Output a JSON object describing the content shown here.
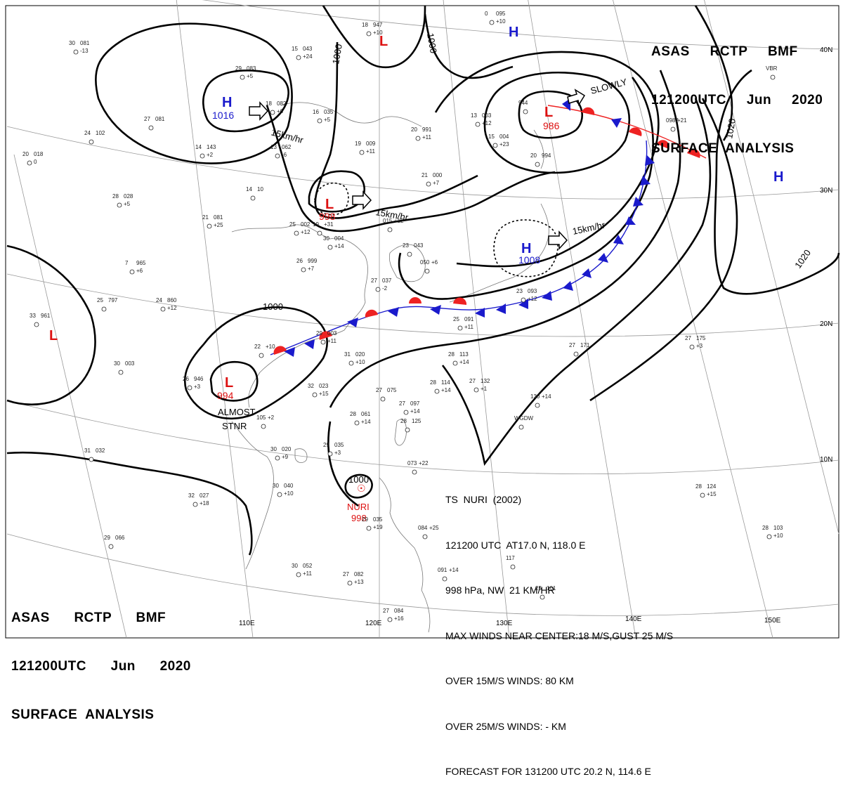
{
  "header_top": {
    "line1": "ASAS     RCTP     BMF",
    "line2": "121200UTC     Jun     2020",
    "line3": "SURFACE  ANALYSIS"
  },
  "header_bottom": {
    "line1": "ASAS      RCTP      BMF",
    "line2": "121200UTC      Jun      2020",
    "line3": "SURFACE  ANALYSIS"
  },
  "typhoon_info": {
    "line1": "TS  NURI  (2002)",
    "line2": "121200 UTC  AT17.0 N, 118.0 E",
    "line3": "998 hPa, NW  21 KM/HR",
    "line4": "MAX WINDS NEAR CENTER:18 M/S,GUST 25 M/S",
    "line5": "OVER 15M/S WINDS: 80 KM",
    "line6": "OVER 25M/S WINDS: - KM",
    "line7": "FORECAST FOR 131200 UTC 20.2 N, 114.6 E"
  },
  "pressure_systems": [
    {
      "type": "H",
      "value": "1016",
      "color": "#1a1acc"
    },
    {
      "type": "H",
      "value": "",
      "color": "#1a1acc"
    },
    {
      "type": "H",
      "value": "1008",
      "color": "#1a1acc"
    },
    {
      "type": "H",
      "value": "",
      "color": "#1a1acc"
    },
    {
      "type": "L",
      "value": "998",
      "color": "#dd1111"
    },
    {
      "type": "L",
      "value": "986",
      "color": "#dd1111"
    },
    {
      "type": "L",
      "value": "994",
      "color": "#dd1111"
    },
    {
      "type": "L",
      "value": "",
      "color": "#dd1111"
    },
    {
      "type": "L",
      "value": "",
      "color": "#dd1111"
    }
  ],
  "typhoon_symbol": {
    "name": "NURI",
    "value": "998",
    "color": "#dd1111"
  },
  "motion_labels": {
    "m1": "15km/hr",
    "m2": "15km/hr",
    "m3": "15km/hr",
    "m4": "SLOWLY"
  },
  "notes": {
    "almost": "ALMOST",
    "stnr": "STNR"
  },
  "isobars": {
    "i1000a": "1000",
    "i1000b": "1000",
    "i1000c": "1000",
    "i1000d": "1000",
    "i1020a": "1020",
    "i1020b": "1020"
  },
  "longitudes": [
    "110E",
    "120E",
    "130E",
    "140E",
    "150E"
  ],
  "latitudes": [
    "40N",
    "30N",
    "20N",
    "10N"
  ],
  "stations": [
    {
      "a": "30",
      "b": "081",
      "c": "-13"
    },
    {
      "a": "15",
      "b": "043",
      "c": "+24"
    },
    {
      "a": "18",
      "b": "947",
      "c": "+10"
    },
    {
      "a": "0",
      "b": "095",
      "c": "+10"
    },
    {
      "a": "29",
      "b": "083",
      "c": "+5"
    },
    {
      "a": "18",
      "b": "082",
      "c": "+6"
    },
    {
      "a": "16",
      "b": "035",
      "c": "+5"
    },
    {
      "a": "27",
      "b": "081",
      "c": ""
    },
    {
      "a": "24",
      "b": "102",
      "c": ""
    },
    {
      "a": "20",
      "b": "018",
      "c": "0"
    },
    {
      "a": "14",
      "b": "143",
      "c": "+2"
    },
    {
      "a": "13",
      "b": "062",
      "c": "-6"
    },
    {
      "a": "19",
      "b": "009",
      "c": "+11"
    },
    {
      "a": "20",
      "b": "991",
      "c": "+11"
    },
    {
      "a": "13",
      "b": "003",
      "c": "+12"
    },
    {
      "a": "944",
      "b": "",
      "c": ""
    },
    {
      "a": "15",
      "b": "004",
      "c": "+23"
    },
    {
      "a": "20",
      "b": "994",
      "c": ""
    },
    {
      "a": "21",
      "b": "000",
      "c": "+7"
    },
    {
      "a": "28",
      "b": "028",
      "c": "+5"
    },
    {
      "a": "14",
      "b": "10",
      "c": ""
    },
    {
      "a": "21",
      "b": "081",
      "c": "+25"
    },
    {
      "a": "25",
      "b": "002",
      "c": "+12"
    },
    {
      "a": "19",
      "b": "+31",
      "c": ""
    },
    {
      "a": "015",
      "b": "+12",
      "c": ""
    },
    {
      "a": "30",
      "b": "004",
      "c": "+14"
    },
    {
      "a": "7",
      "b": "965",
      "c": "+6"
    },
    {
      "a": "26",
      "b": "999",
      "c": "+7"
    },
    {
      "a": "23",
      "b": "043",
      "c": ""
    },
    {
      "a": "050",
      "b": "+6",
      "c": ""
    },
    {
      "a": "25",
      "b": "797",
      "c": ""
    },
    {
      "a": "24",
      "b": "860",
      "c": "+12"
    },
    {
      "a": "27",
      "b": "037",
      "c": "-2"
    },
    {
      "a": "23",
      "b": "093",
      "c": "+12"
    },
    {
      "a": "25",
      "b": "091",
      "c": "+11"
    },
    {
      "a": "33",
      "b": "961",
      "c": ""
    },
    {
      "a": "29",
      "b": "003",
      "c": "+11"
    },
    {
      "a": "22",
      "b": "+10",
      "c": ""
    },
    {
      "a": "31",
      "b": "020",
      "c": "+10"
    },
    {
      "a": "28",
      "b": "113",
      "c": "+14"
    },
    {
      "a": "27",
      "b": "171",
      "c": ""
    },
    {
      "a": "27",
      "b": "175",
      "c": "+3"
    },
    {
      "a": "30",
      "b": "003",
      "c": ""
    },
    {
      "a": "26",
      "b": "946",
      "c": "+3"
    },
    {
      "a": "32",
      "b": "023",
      "c": "+15"
    },
    {
      "a": "28",
      "b": "114",
      "c": "+14"
    },
    {
      "a": "27",
      "b": "132",
      "c": "+1"
    },
    {
      "a": "27",
      "b": "075",
      "c": ""
    },
    {
      "a": "28",
      "b": "061",
      "c": "+14"
    },
    {
      "a": "27",
      "b": "097",
      "c": "+14"
    },
    {
      "a": "130",
      "b": "+14",
      "c": ""
    },
    {
      "a": "105",
      "b": "+2",
      "c": ""
    },
    {
      "a": "31",
      "b": "032",
      "c": ""
    },
    {
      "a": "30",
      "b": "020",
      "c": "+9"
    },
    {
      "a": "29",
      "b": "035",
      "c": "+3"
    },
    {
      "a": "28",
      "b": "125",
      "c": ""
    },
    {
      "a": "30",
      "b": "040",
      "c": "+10"
    },
    {
      "a": "32",
      "b": "027",
      "c": "+18"
    },
    {
      "a": "29",
      "b": "035",
      "c": "+19"
    },
    {
      "a": "073",
      "b": "+22",
      "c": ""
    },
    {
      "a": "28",
      "b": "124",
      "c": "+15"
    },
    {
      "a": "28",
      "b": "103",
      "c": "+10"
    },
    {
      "a": "29",
      "b": "066",
      "c": ""
    },
    {
      "a": "30",
      "b": "052",
      "c": "+11"
    },
    {
      "a": "27",
      "b": "082",
      "c": "+13"
    },
    {
      "a": "084",
      "b": "+25",
      "c": ""
    },
    {
      "a": "091",
      "b": "+14",
      "c": ""
    },
    {
      "a": "25",
      "b": "101",
      "c": ""
    },
    {
      "a": "27",
      "b": "084",
      "c": "+16"
    },
    {
      "a": "117",
      "b": "",
      "c": ""
    },
    {
      "a": "WGDW",
      "b": "",
      "c": ""
    },
    {
      "a": "VBR",
      "b": "",
      "c": ""
    },
    {
      "a": "0982",
      "b": "+21",
      "c": ""
    }
  ],
  "colors": {
    "cold_front": "#1a1acc",
    "warm_front": "#ee2222",
    "isobar": "#000000",
    "graticule": "#999999"
  }
}
